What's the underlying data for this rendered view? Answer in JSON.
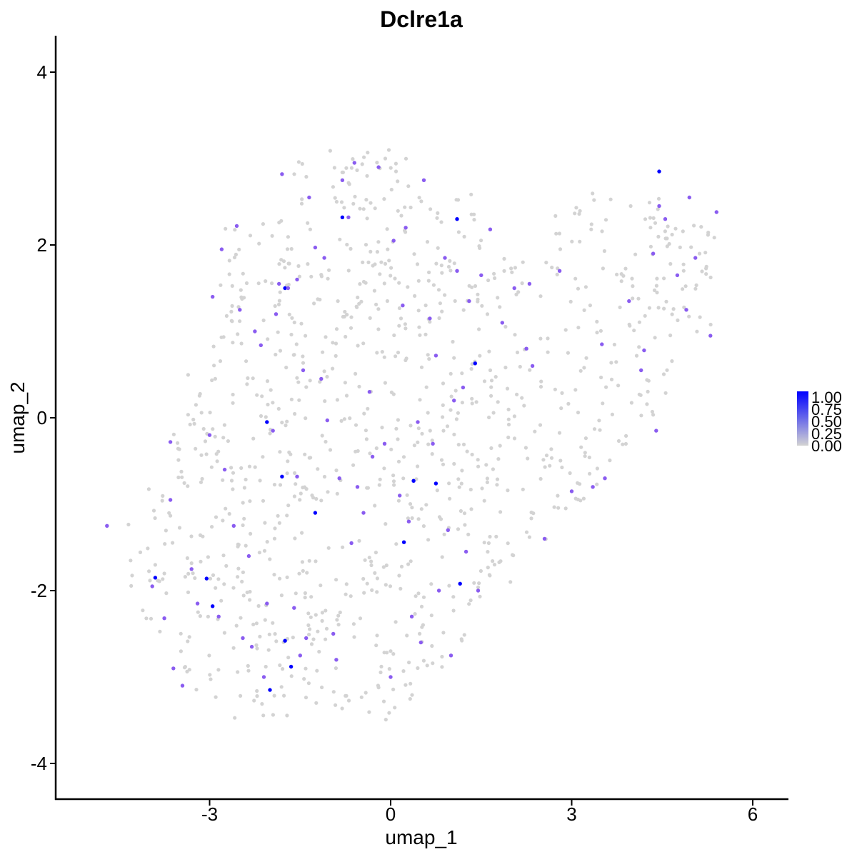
{
  "chart_data": {
    "type": "scatter",
    "title": "Dclre1a",
    "xlabel": "umap_1",
    "ylabel": "umap_2",
    "xlim": [
      -5.0,
      6.2
    ],
    "ylim": [
      -4.3,
      4.4
    ],
    "x_ticks": [
      -3,
      0,
      3,
      6
    ],
    "x_tick_labels": [
      "-3",
      "0",
      "3",
      "6"
    ],
    "y_ticks": [
      -4,
      -2,
      0,
      2,
      4
    ],
    "y_tick_labels": [
      "-4",
      "-2",
      "0",
      "2",
      "4"
    ],
    "grid": false,
    "legend": {
      "position": "right",
      "kind": "colorbar",
      "labels": [
        "1.00",
        "0.75",
        "0.50",
        "0.25",
        "0.00"
      ],
      "range": [
        0,
        1
      ],
      "low_color": "#d3d3d3",
      "high_color": "#0000ff"
    },
    "colors": {
      "low": "#d3d3d3",
      "mid": "#8a5cf0",
      "high": "#0000ff"
    },
    "n_background_cells": 1050,
    "series": [
      {
        "values": [
          {
            "x": 4.45,
            "y": 2.85,
            "v": 1.0
          },
          {
            "x": -0.8,
            "y": 2.32,
            "v": 1.0
          },
          {
            "x": 1.1,
            "y": 2.3,
            "v": 1.0
          },
          {
            "x": -1.75,
            "y": 1.5,
            "v": 1.0
          },
          {
            "x": 1.4,
            "y": 0.63,
            "v": 1.0
          },
          {
            "x": -2.05,
            "y": -0.05,
            "v": 1.0
          },
          {
            "x": -1.8,
            "y": -0.68,
            "v": 1.0
          },
          {
            "x": 0.38,
            "y": -0.73,
            "v": 1.0
          },
          {
            "x": 0.75,
            "y": -0.76,
            "v": 1.0
          },
          {
            "x": -1.25,
            "y": -1.1,
            "v": 1.0
          },
          {
            "x": 0.22,
            "y": -1.44,
            "v": 1.0
          },
          {
            "x": -3.9,
            "y": -1.85,
            "v": 1.0
          },
          {
            "x": -3.05,
            "y": -1.86,
            "v": 1.0
          },
          {
            "x": 1.15,
            "y": -1.92,
            "v": 1.0
          },
          {
            "x": -2.95,
            "y": -2.18,
            "v": 1.0
          },
          {
            "x": -1.75,
            "y": -2.58,
            "v": 1.0
          },
          {
            "x": -1.65,
            "y": -2.88,
            "v": 1.0
          },
          {
            "x": -2.0,
            "y": -3.15,
            "v": 1.0
          },
          {
            "x": -4.7,
            "y": -1.25,
            "v": 0.6
          },
          {
            "x": -3.65,
            "y": -0.28,
            "v": 0.6
          },
          {
            "x": -3.65,
            "y": -0.95,
            "v": 0.6
          },
          {
            "x": -3.95,
            "y": -1.95,
            "v": 0.6
          },
          {
            "x": -3.75,
            "y": -2.32,
            "v": 0.6
          },
          {
            "x": -3.6,
            "y": -2.9,
            "v": 0.6
          },
          {
            "x": -3.45,
            "y": -3.1,
            "v": 0.6
          },
          {
            "x": -3.3,
            "y": -1.75,
            "v": 0.6
          },
          {
            "x": -3.2,
            "y": -2.15,
            "v": 0.6
          },
          {
            "x": -3.0,
            "y": -0.2,
            "v": 0.6
          },
          {
            "x": -2.95,
            "y": 1.4,
            "v": 0.6
          },
          {
            "x": -2.8,
            "y": 1.95,
            "v": 0.6
          },
          {
            "x": -2.75,
            "y": -0.6,
            "v": 0.6
          },
          {
            "x": -2.85,
            "y": -2.3,
            "v": 0.6
          },
          {
            "x": -2.6,
            "y": -1.25,
            "v": 0.6
          },
          {
            "x": -2.55,
            "y": 2.22,
            "v": 0.6
          },
          {
            "x": -2.5,
            "y": 1.25,
            "v": 0.6
          },
          {
            "x": -2.45,
            "y": -2.55,
            "v": 0.6
          },
          {
            "x": -2.35,
            "y": -1.6,
            "v": 0.6
          },
          {
            "x": -2.3,
            "y": -2.65,
            "v": 0.6
          },
          {
            "x": -2.25,
            "y": 1.0,
            "v": 0.6
          },
          {
            "x": -2.15,
            "y": 0.84,
            "v": 0.6
          },
          {
            "x": -2.1,
            "y": -3.0,
            "v": 0.6
          },
          {
            "x": -2.05,
            "y": -2.15,
            "v": 0.6
          },
          {
            "x": -1.95,
            "y": -0.15,
            "v": 0.6
          },
          {
            "x": -1.9,
            "y": 1.2,
            "v": 0.6
          },
          {
            "x": -1.85,
            "y": 1.55,
            "v": 0.6
          },
          {
            "x": -1.8,
            "y": 2.82,
            "v": 0.6
          },
          {
            "x": -1.7,
            "y": 1.5,
            "v": 0.6
          },
          {
            "x": -1.6,
            "y": -2.2,
            "v": 0.6
          },
          {
            "x": -1.55,
            "y": -0.68,
            "v": 0.6
          },
          {
            "x": -1.55,
            "y": 1.6,
            "v": 0.6
          },
          {
            "x": -1.5,
            "y": -2.75,
            "v": 0.6
          },
          {
            "x": -1.45,
            "y": 0.55,
            "v": 0.6
          },
          {
            "x": -1.4,
            "y": -2.55,
            "v": 0.6
          },
          {
            "x": -1.35,
            "y": 2.55,
            "v": 0.6
          },
          {
            "x": -1.25,
            "y": 1.97,
            "v": 0.6
          },
          {
            "x": -1.15,
            "y": 0.45,
            "v": 0.6
          },
          {
            "x": -1.1,
            "y": 1.85,
            "v": 0.6
          },
          {
            "x": -1.05,
            "y": -0.03,
            "v": 0.6
          },
          {
            "x": -0.95,
            "y": -2.5,
            "v": 0.6
          },
          {
            "x": -0.9,
            "y": -2.8,
            "v": 0.6
          },
          {
            "x": -0.85,
            "y": -0.7,
            "v": 0.6
          },
          {
            "x": -0.8,
            "y": 2.75,
            "v": 0.6
          },
          {
            "x": -0.7,
            "y": 2.32,
            "v": 0.6
          },
          {
            "x": -0.65,
            "y": -1.45,
            "v": 0.6
          },
          {
            "x": -0.6,
            "y": 2.95,
            "v": 0.6
          },
          {
            "x": -0.55,
            "y": -0.8,
            "v": 0.6
          },
          {
            "x": -0.45,
            "y": -1.1,
            "v": 0.6
          },
          {
            "x": -0.35,
            "y": 0.3,
            "v": 0.6
          },
          {
            "x": -0.3,
            "y": -0.45,
            "v": 0.6
          },
          {
            "x": -0.2,
            "y": 2.9,
            "v": 0.6
          },
          {
            "x": -0.1,
            "y": -0.3,
            "v": 0.6
          },
          {
            "x": 0.0,
            "y": -3.0,
            "v": 0.6
          },
          {
            "x": 0.05,
            "y": 2.05,
            "v": 0.6
          },
          {
            "x": 0.15,
            "y": -0.9,
            "v": 0.6
          },
          {
            "x": 0.2,
            "y": 1.3,
            "v": 0.6
          },
          {
            "x": 0.25,
            "y": 2.2,
            "v": 0.6
          },
          {
            "x": 0.3,
            "y": -1.2,
            "v": 0.6
          },
          {
            "x": 0.35,
            "y": -2.3,
            "v": 0.6
          },
          {
            "x": 0.45,
            "y": -0.05,
            "v": 0.6
          },
          {
            "x": 0.5,
            "y": -2.6,
            "v": 0.6
          },
          {
            "x": 0.55,
            "y": 2.75,
            "v": 0.6
          },
          {
            "x": 0.65,
            "y": 1.15,
            "v": 0.6
          },
          {
            "x": 0.7,
            "y": -0.3,
            "v": 0.6
          },
          {
            "x": 0.75,
            "y": 0.72,
            "v": 0.6
          },
          {
            "x": 0.8,
            "y": -2.0,
            "v": 0.6
          },
          {
            "x": 0.9,
            "y": 1.85,
            "v": 0.6
          },
          {
            "x": 0.95,
            "y": -1.3,
            "v": 0.6
          },
          {
            "x": 1.0,
            "y": -2.75,
            "v": 0.6
          },
          {
            "x": 1.05,
            "y": 0.2,
            "v": 0.6
          },
          {
            "x": 1.1,
            "y": 1.7,
            "v": 0.6
          },
          {
            "x": 1.2,
            "y": 0.35,
            "v": 0.6
          },
          {
            "x": 1.25,
            "y": -1.55,
            "v": 0.6
          },
          {
            "x": 1.3,
            "y": 1.35,
            "v": 0.6
          },
          {
            "x": 1.45,
            "y": -2.0,
            "v": 0.6
          },
          {
            "x": 1.5,
            "y": 1.65,
            "v": 0.6
          },
          {
            "x": 1.65,
            "y": 2.18,
            "v": 0.6
          },
          {
            "x": 1.85,
            "y": 1.1,
            "v": 0.6
          },
          {
            "x": 2.05,
            "y": 1.5,
            "v": 0.6
          },
          {
            "x": 2.25,
            "y": 0.8,
            "v": 0.6
          },
          {
            "x": 2.3,
            "y": 1.55,
            "v": 0.6
          },
          {
            "x": 2.35,
            "y": 0.6,
            "v": 0.6
          },
          {
            "x": 2.55,
            "y": -1.4,
            "v": 0.6
          },
          {
            "x": 2.8,
            "y": 1.7,
            "v": 0.6
          },
          {
            "x": 3.0,
            "y": -0.85,
            "v": 0.6
          },
          {
            "x": 3.35,
            "y": -0.8,
            "v": 0.6
          },
          {
            "x": 3.5,
            "y": 0.85,
            "v": 0.6
          },
          {
            "x": 3.55,
            "y": -0.7,
            "v": 0.6
          },
          {
            "x": 3.95,
            "y": 1.35,
            "v": 0.6
          },
          {
            "x": 4.15,
            "y": 0.55,
            "v": 0.6
          },
          {
            "x": 4.2,
            "y": 0.78,
            "v": 0.6
          },
          {
            "x": 4.35,
            "y": 1.9,
            "v": 0.6
          },
          {
            "x": 4.4,
            "y": -0.15,
            "v": 0.6
          },
          {
            "x": 4.45,
            "y": 2.45,
            "v": 0.6
          },
          {
            "x": 4.55,
            "y": 2.3,
            "v": 0.6
          },
          {
            "x": 4.75,
            "y": 1.65,
            "v": 0.6
          },
          {
            "x": 4.9,
            "y": 1.25,
            "v": 0.6
          },
          {
            "x": 4.95,
            "y": 2.55,
            "v": 0.6
          },
          {
            "x": 5.05,
            "y": 1.85,
            "v": 0.6
          },
          {
            "x": 5.3,
            "y": 0.95,
            "v": 0.6
          },
          {
            "x": 5.4,
            "y": 2.38,
            "v": 0.6
          }
        ]
      }
    ]
  }
}
